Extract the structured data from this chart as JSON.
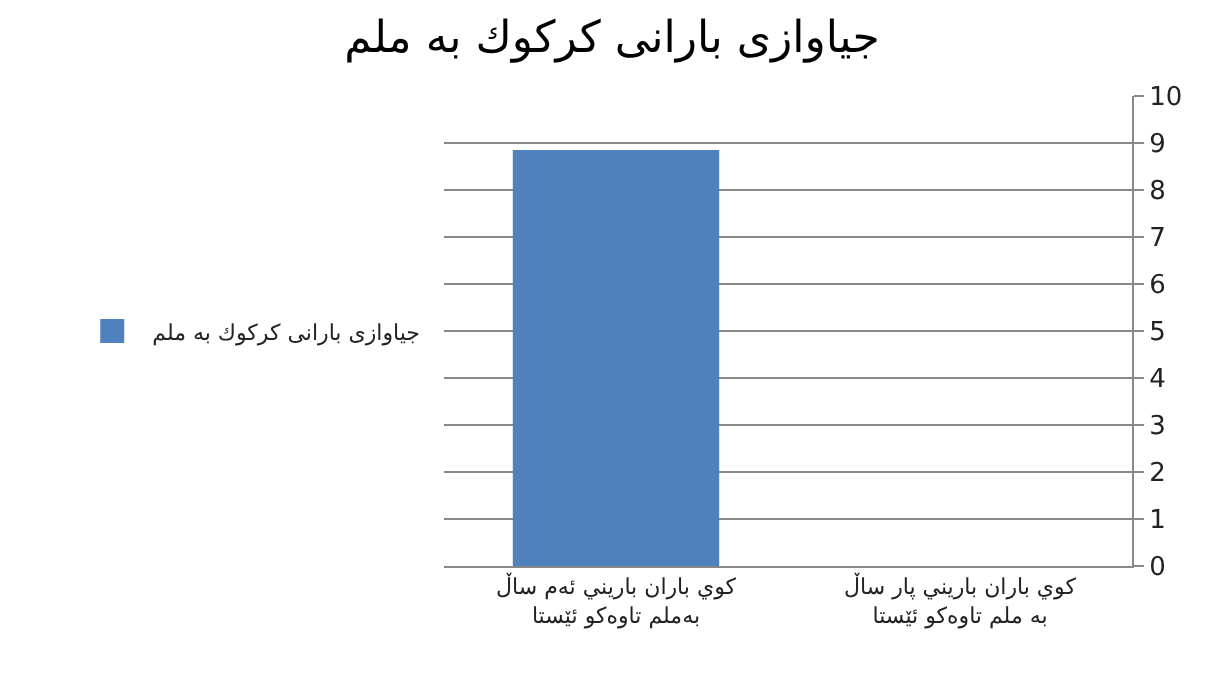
{
  "chart_data": {
    "type": "bar",
    "title": "جیاوازی بارانی کرکوك به ملم",
    "categories": [
      "كوي باران باريني ئەم ساڵ بەملم تاوەكو ئێستا",
      "كوي باران باريني پار ساڵ بە ملم تاوەكو ئێستا"
    ],
    "series": [
      {
        "name": "جیاوازی بارانی کرکوك به ملم",
        "color": "#4f81bd",
        "values": [
          8.85,
          null
        ]
      }
    ],
    "ylim": [
      0,
      10
    ],
    "yticks": [
      0,
      1,
      2,
      3,
      4,
      5,
      6,
      7,
      8,
      9,
      10
    ],
    "grid": "y",
    "legend": "left"
  }
}
